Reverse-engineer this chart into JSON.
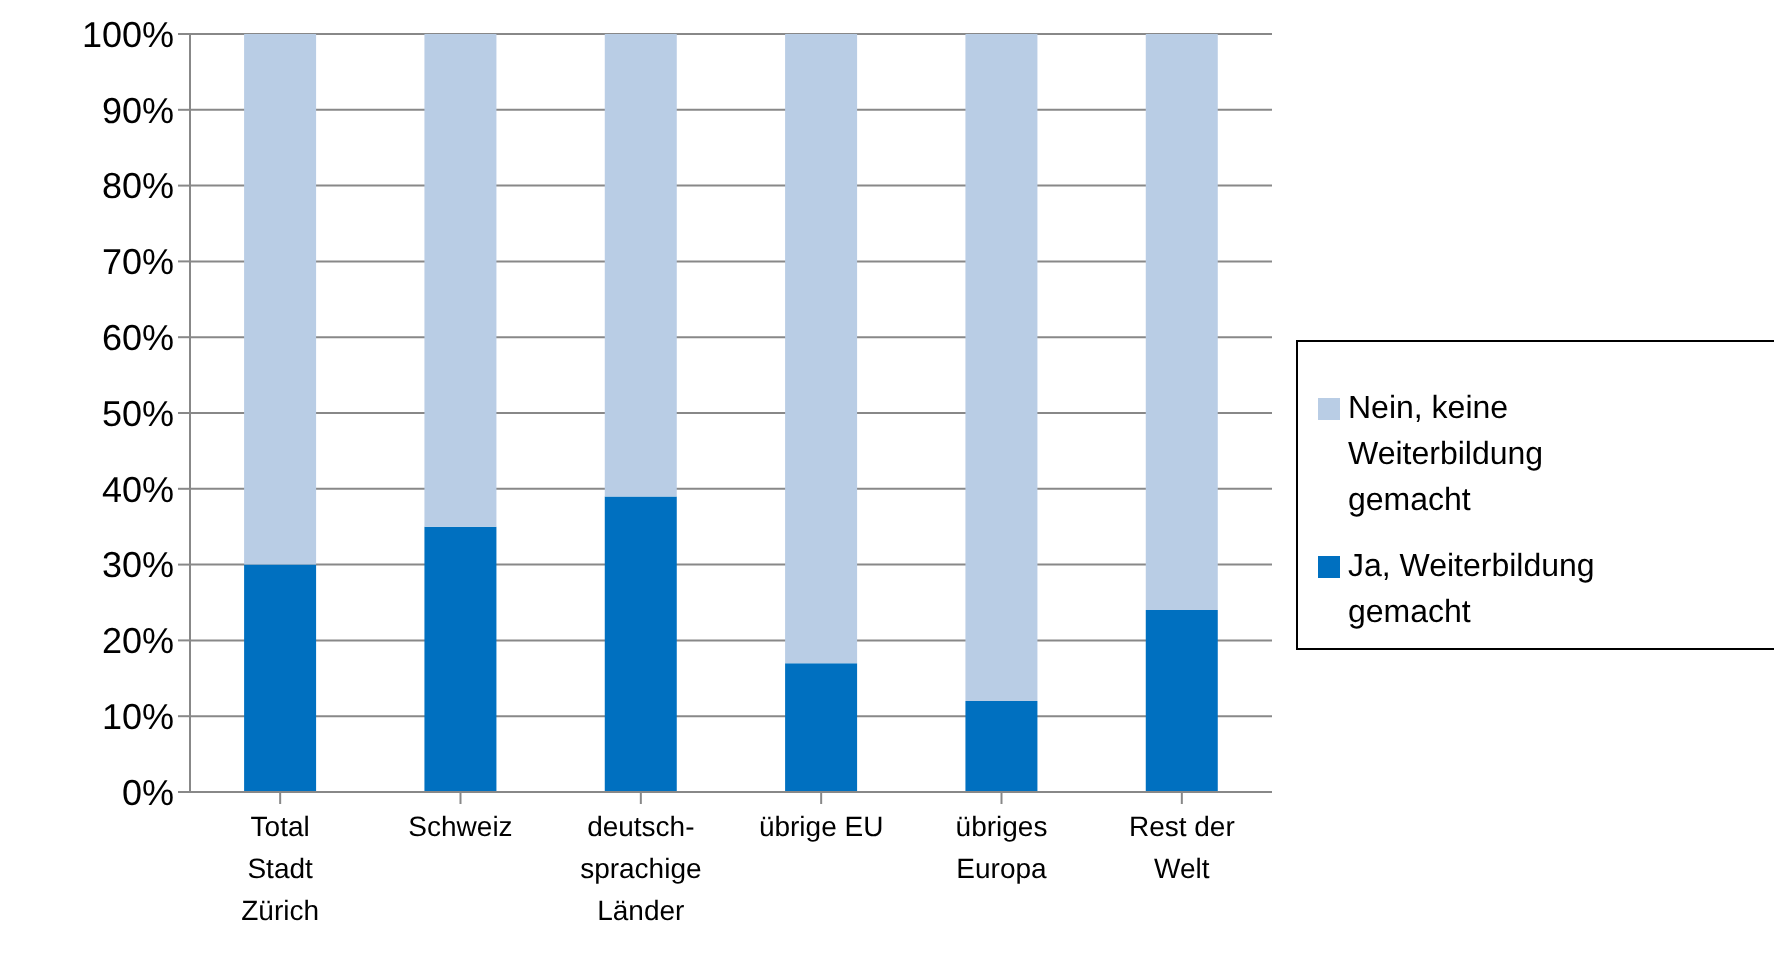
{
  "chart_data": {
    "type": "bar",
    "stacked": true,
    "categories": [
      "Total Stadt Zürich",
      "Schweiz",
      "deutsch-sprachige Länder",
      "übrige EU",
      "übriges Europa",
      "Rest der Welt"
    ],
    "series": [
      {
        "name": "Ja, Weiterbildung gemacht",
        "color": "#0070c0",
        "values": [
          30,
          35,
          39,
          17,
          12,
          24
        ]
      },
      {
        "name": "Nein, keine Weiterbildung gemacht",
        "color": "#b9cde5",
        "values": [
          70,
          65,
          61,
          83,
          88,
          76
        ]
      }
    ],
    "ylim": [
      0,
      100
    ],
    "yticks": [
      {
        "value": 0,
        "label": "0%"
      },
      {
        "value": 10,
        "label": "10%"
      },
      {
        "value": 20,
        "label": "20%"
      },
      {
        "value": 30,
        "label": "30%"
      },
      {
        "value": 40,
        "label": "40%"
      },
      {
        "value": 50,
        "label": "50%"
      },
      {
        "value": 60,
        "label": "60%"
      },
      {
        "value": 70,
        "label": "70%"
      },
      {
        "value": 80,
        "label": "80%"
      },
      {
        "value": 90,
        "label": "90%"
      },
      {
        "value": 100,
        "label": "100%"
      }
    ],
    "grid": "y",
    "legend": "right"
  }
}
